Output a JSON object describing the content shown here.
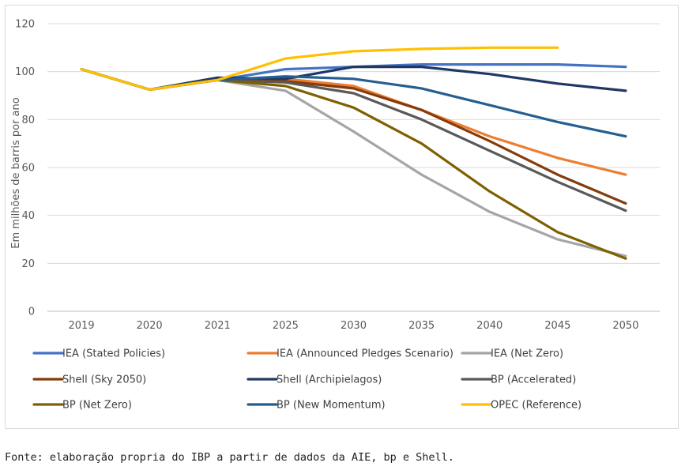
{
  "chart_data": {
    "type": "line",
    "title": "",
    "xlabel": "",
    "ylabel": "Em milhões de barris por ano",
    "ylim": [
      0,
      120
    ],
    "yticks": [
      0,
      20,
      40,
      60,
      80,
      100,
      120
    ],
    "grid": true,
    "legend_position": "bottom",
    "categories": [
      "2019",
      "2020",
      "2021",
      "2025",
      "2030",
      "2035",
      "2040",
      "2045",
      "2050"
    ],
    "series": [
      {
        "name": "IEA (Stated Policies)",
        "color": "#4472c4",
        "values": [
          101,
          92.5,
          96.5,
          101,
          102,
          103,
          103,
          103,
          102
        ]
      },
      {
        "name": "IEA (Announced Pledges Scenario)",
        "color": "#ed7d31",
        "values": [
          101,
          92.5,
          96.5,
          97,
          94,
          84,
          73,
          64,
          57
        ]
      },
      {
        "name": "IEA (Net Zero)",
        "color": "#a5a5a5",
        "values": [
          101,
          92.5,
          96.5,
          92,
          75,
          57,
          41.5,
          30,
          23
        ]
      },
      {
        "name": "Shell (Sky 2050)",
        "color": "#843c0c",
        "values": [
          101,
          92.5,
          96.5,
          96,
          93,
          84,
          71,
          57,
          45
        ]
      },
      {
        "name": "Shell (Archipielagos)",
        "color": "#203864",
        "values": [
          101,
          92.5,
          97.5,
          97,
          102,
          102,
          99,
          95,
          92
        ]
      },
      {
        "name": "BP (Accelerated)",
        "color": "#595959",
        "values": [
          101,
          92.5,
          96.5,
          95.5,
          91,
          80,
          67,
          54,
          42
        ]
      },
      {
        "name": "BP (Net Zero)",
        "color": "#7f6000",
        "values": [
          101,
          92.5,
          96.5,
          94,
          85,
          70,
          50,
          33,
          22
        ]
      },
      {
        "name": "BP (New Momentum)",
        "color": "#255e91",
        "values": [
          101,
          92.5,
          96.5,
          98,
          97,
          93,
          86,
          79,
          73
        ]
      },
      {
        "name": "OPEC (Reference)",
        "color": "#ffc000",
        "values": [
          101,
          92.5,
          96.5,
          105.5,
          108.5,
          109.5,
          110,
          110,
          null
        ]
      }
    ]
  },
  "source_note": "Fonte: elaboração propria do IBP a partir de dados da AIE, bp e Shell."
}
